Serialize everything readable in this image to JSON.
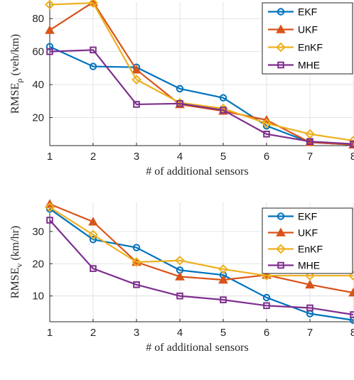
{
  "chart_data": [
    {
      "type": "line",
      "x": [
        1,
        2,
        3,
        4,
        5,
        6,
        7,
        8
      ],
      "xlabel": "# of additional sensors",
      "ylabel": "RMSE",
      "ylabel_subscript": "ρ",
      "ylabel_unit": "(veh/km)",
      "xlim": [
        1,
        8
      ],
      "ylim": [
        3,
        90
      ],
      "xticks": [
        "1",
        "2",
        "3",
        "4",
        "5",
        "6",
        "7",
        "8"
      ],
      "yticks": [
        20,
        40,
        60,
        80
      ],
      "grid": true,
      "legend_position": "top-right",
      "series": [
        {
          "name": "EKF",
          "color": "#0072BD",
          "marker": "circle",
          "values": [
            63,
            51,
            50.5,
            37.5,
            32,
            15,
            5,
            3.5
          ]
        },
        {
          "name": "UKF",
          "color": "#D95319",
          "marker": "triangle",
          "values": [
            73,
            90,
            49,
            28,
            24,
            18.5,
            5,
            3.5
          ]
        },
        {
          "name": "EnKF",
          "color": "#EDB120",
          "marker": "diamond",
          "values": [
            88.5,
            89.5,
            43,
            29,
            25.5,
            16.5,
            10,
            6
          ]
        },
        {
          "name": "MHE",
          "color": "#7E2F8E",
          "marker": "square",
          "values": [
            60,
            61,
            28,
            28.5,
            24.5,
            10,
            5.5,
            4
          ]
        }
      ]
    },
    {
      "type": "line",
      "x": [
        1,
        2,
        3,
        4,
        5,
        6,
        7,
        8
      ],
      "xlabel": "# of additional sensors",
      "ylabel": "RMSE",
      "ylabel_subscript": "v",
      "ylabel_unit": "(km/hr)",
      "xlim": [
        1,
        8
      ],
      "ylim": [
        2,
        39
      ],
      "xticks": [
        "1",
        "2",
        "3",
        "4",
        "5",
        "6",
        "7",
        "8"
      ],
      "yticks": [
        10,
        20,
        30
      ],
      "grid": true,
      "legend_position": "top-right",
      "series": [
        {
          "name": "EKF",
          "color": "#0072BD",
          "marker": "circle",
          "values": [
            37,
            27.5,
            25,
            18,
            16.5,
            9.5,
            4.5,
            2.5
          ]
        },
        {
          "name": "UKF",
          "color": "#D95319",
          "marker": "triangle",
          "values": [
            38.5,
            33,
            20.5,
            16,
            15,
            16.5,
            13.5,
            11
          ]
        },
        {
          "name": "EnKF",
          "color": "#EDB120",
          "marker": "diamond",
          "values": [
            37.5,
            29,
            20.5,
            21,
            18.3,
            16.3,
            16.3,
            16.3
          ]
        },
        {
          "name": "MHE",
          "color": "#7E2F8E",
          "marker": "square",
          "values": [
            33.5,
            18.5,
            13.5,
            10,
            8.8,
            7,
            6.3,
            4.2
          ]
        }
      ]
    }
  ]
}
